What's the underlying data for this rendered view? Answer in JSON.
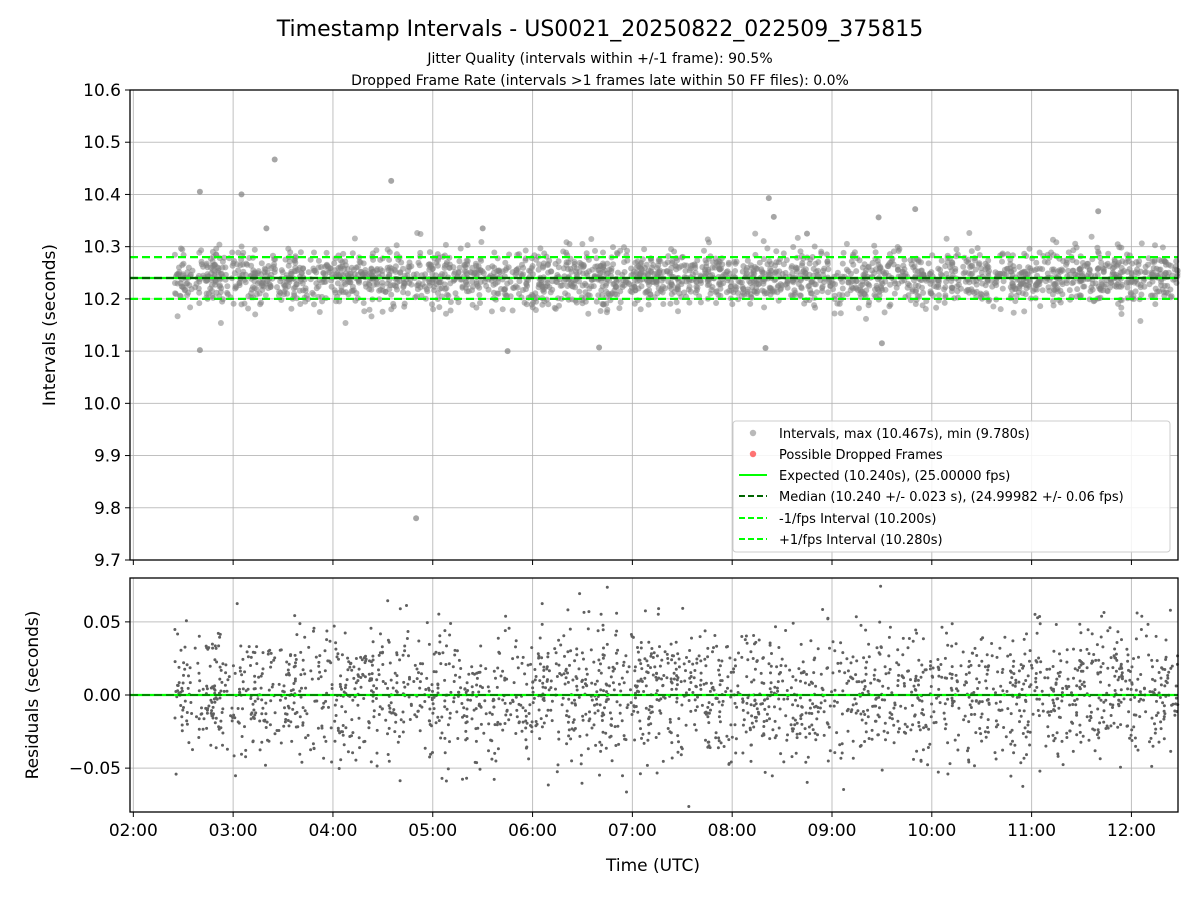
{
  "chart_data": {
    "type": "scatter",
    "title": "Timestamp Intervals - US0021_20250822_022509_375815",
    "subtitle_1": "Jitter Quality (intervals within +/-1 frame): 90.5%",
    "subtitle_2": "Dropped Frame Rate (intervals >1 frames late within 50 FF files): 0.0%",
    "xlabel": "Time (UTC)",
    "x_range": [
      "01:58",
      "12:28"
    ],
    "x_ticks": [
      "02:00",
      "03:00",
      "04:00",
      "05:00",
      "06:00",
      "07:00",
      "08:00",
      "09:00",
      "10:00",
      "11:00",
      "12:00"
    ],
    "data_x_start": "02:25",
    "data_x_end": "12:28",
    "grid": true,
    "legend_position": "lower-right",
    "top_panel": {
      "ylabel": "Intervals (seconds)",
      "ylim": [
        9.7,
        10.6
      ],
      "y_ticks": [
        "10.6",
        "10.5",
        "10.4",
        "10.3",
        "10.2",
        "10.1",
        "10.0",
        "9.9",
        "9.8",
        "9.7"
      ],
      "center": 10.24,
      "typical_spread": 0.023,
      "notable_points": [
        {
          "time": "03:25",
          "value": 10.467
        },
        {
          "time": "04:35",
          "value": 10.426
        },
        {
          "time": "02:40",
          "value": 10.405
        },
        {
          "time": "03:05",
          "value": 10.4
        },
        {
          "time": "08:22",
          "value": 10.393
        },
        {
          "time": "09:50",
          "value": 10.372
        },
        {
          "time": "11:40",
          "value": 10.368
        },
        {
          "time": "08:25",
          "value": 10.357
        },
        {
          "time": "09:28",
          "value": 10.356
        },
        {
          "time": "05:30",
          "value": 10.335
        },
        {
          "time": "03:20",
          "value": 10.335
        },
        {
          "time": "08:45",
          "value": 10.325
        },
        {
          "time": "02:40",
          "value": 10.102
        },
        {
          "time": "05:45",
          "value": 10.1
        },
        {
          "time": "06:40",
          "value": 10.107
        },
        {
          "time": "08:20",
          "value": 10.106
        },
        {
          "time": "09:30",
          "value": 10.115
        },
        {
          "time": "04:50",
          "value": 9.78
        }
      ],
      "series": [
        {
          "name": "Intervals, max (10.467s), min (9.780s)",
          "kind": "points",
          "color": "#808080"
        },
        {
          "name": "Possible Dropped Frames",
          "kind": "points",
          "color": "#ff0000",
          "values": []
        },
        {
          "name": "Expected (10.240s), (25.00000 fps)",
          "kind": "hline",
          "y": 10.24,
          "color": "#00ff00",
          "style": "solid"
        },
        {
          "name": "Median (10.240 +/- 0.023 s), (24.99982 +/- 0.06 fps)",
          "kind": "hline",
          "y": 10.24,
          "color": "#006400",
          "style": "dashed"
        },
        {
          "name": "-1/fps Interval (10.200s)",
          "kind": "hline",
          "y": 10.2,
          "color": "#00ff00",
          "style": "dashed"
        },
        {
          "name": "+1/fps Interval (10.280s)",
          "kind": "hline",
          "y": 10.28,
          "color": "#00ff00",
          "style": "dashed"
        }
      ]
    },
    "bottom_panel": {
      "ylabel": "Residuals (seconds)",
      "ylim": [
        -0.08,
        0.08
      ],
      "y_ticks": [
        "0.05",
        "0.00",
        "−0.05"
      ],
      "y_tick_values": [
        0.05,
        0.0,
        -0.05
      ],
      "zero_line_color": "#00ff00",
      "point_color": "#606060",
      "typical_spread": 0.023
    }
  }
}
